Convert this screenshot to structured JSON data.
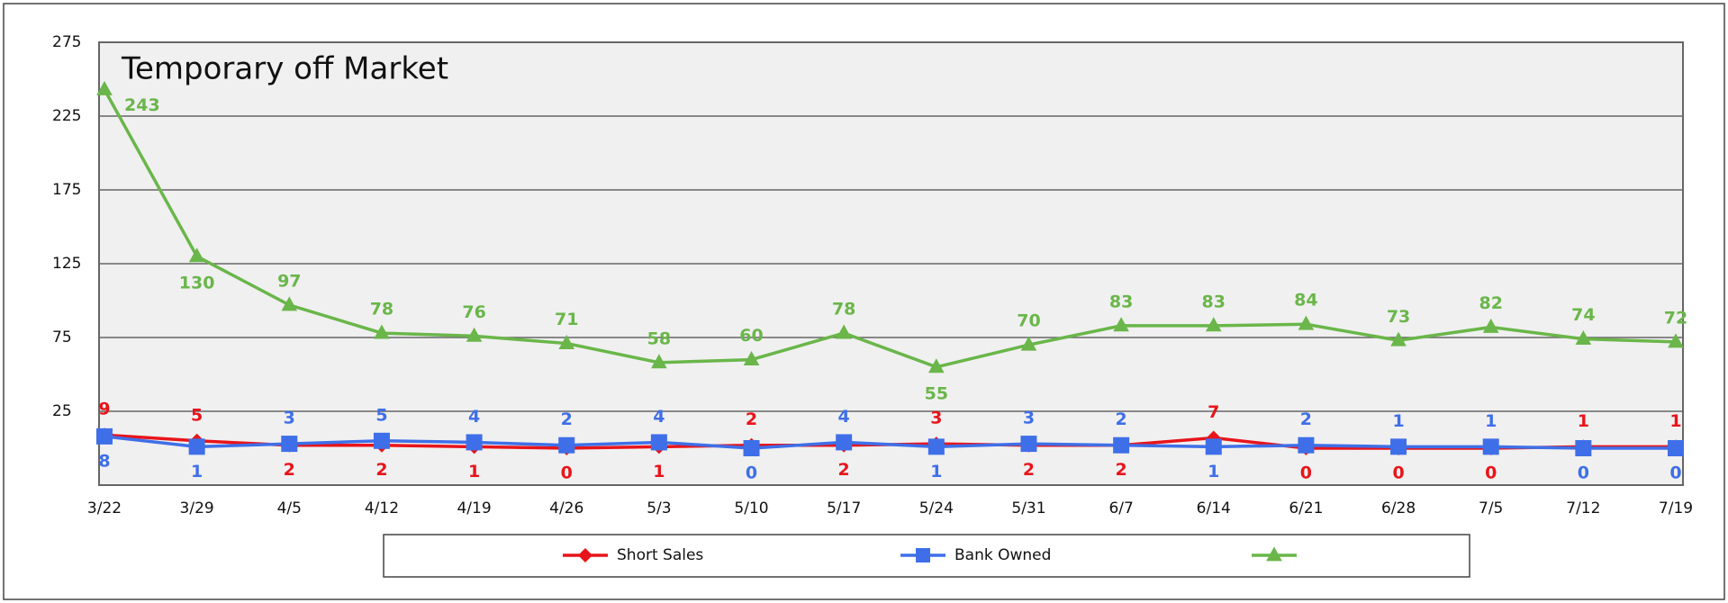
{
  "chart_data": {
    "type": "line",
    "title": "Temporary off Market",
    "categories": [
      "3/22",
      "3/29",
      "4/5",
      "4/12",
      "4/19",
      "4/26",
      "5/3",
      "5/10",
      "5/17",
      "5/24",
      "5/31",
      "6/7",
      "6/14",
      "6/21",
      "6/28",
      "7/5",
      "7/12",
      "7/19"
    ],
    "series": [
      {
        "name": "Short Sales",
        "color": "#e8141b",
        "marker": "diamond",
        "values": [
          9,
          5,
          2,
          2,
          1,
          0,
          1,
          2,
          2,
          3,
          2,
          2,
          7,
          0,
          0,
          0,
          1,
          1
        ]
      },
      {
        "name": "Bank Owned",
        "color": "#3f6fe8",
        "marker": "square",
        "values": [
          8,
          1,
          3,
          5,
          4,
          2,
          4,
          0,
          4,
          1,
          3,
          2,
          1,
          2,
          1,
          1,
          0,
          0
        ]
      },
      {
        "color": "#6ab64a",
        "marker": "triangle",
        "values": [
          243,
          130,
          97,
          78,
          76,
          71,
          58,
          60,
          78,
          55,
          70,
          83,
          83,
          84,
          73,
          82,
          74,
          72
        ]
      }
    ],
    "ylim": [
      -25,
      275
    ],
    "yticks": [
      25,
      75,
      125,
      175,
      225,
      275
    ],
    "grid": true,
    "legend": "bottom"
  }
}
